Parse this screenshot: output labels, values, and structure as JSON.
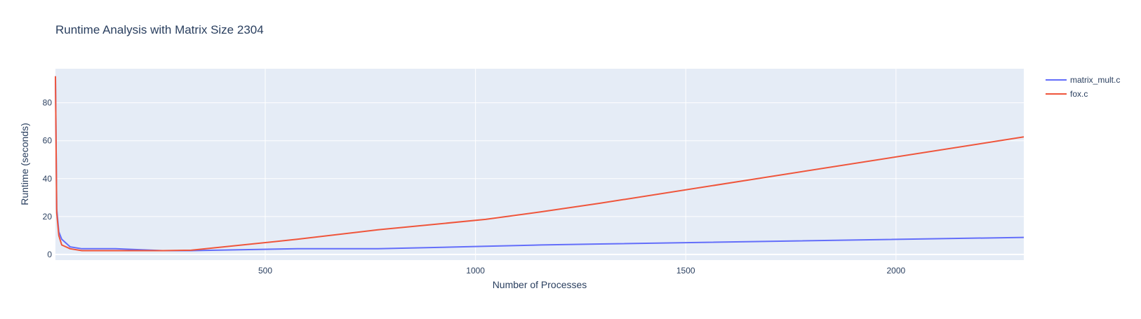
{
  "chart_data": {
    "type": "line",
    "title": "Runtime Analysis with Matrix Size 2304",
    "xlabel": "Number of Processes",
    "ylabel": "Runtime (seconds)",
    "xlim": [
      1,
      2304
    ],
    "ylim": [
      -3,
      98
    ],
    "xticks": [
      500,
      1000,
      1500,
      2000
    ],
    "yticks": [
      0,
      20,
      40,
      60,
      80
    ],
    "grid": true,
    "legend_position": "top-right, outside plot area",
    "plot_background": "#e5ecf6",
    "series": [
      {
        "name": "matrix_mult.c",
        "color": "#636efa",
        "x": [
          1,
          4,
          9,
          16,
          36,
          64,
          144,
          256,
          324,
          576,
          768,
          1024,
          1156,
          1296,
          2304
        ],
        "y": [
          94,
          24,
          12,
          8,
          4,
          3,
          3,
          2,
          2,
          3,
          3,
          4.3,
          5,
          5.5,
          9
        ]
      },
      {
        "name": "fox.c",
        "color": "#ef553b",
        "x": [
          1,
          4,
          9,
          16,
          36,
          64,
          144,
          256,
          324,
          576,
          768,
          1024,
          1156,
          1296,
          2304
        ],
        "y": [
          94,
          22,
          10,
          5,
          3,
          2,
          2,
          2,
          2.2,
          8,
          13,
          18.5,
          22.5,
          27,
          62
        ]
      }
    ]
  }
}
